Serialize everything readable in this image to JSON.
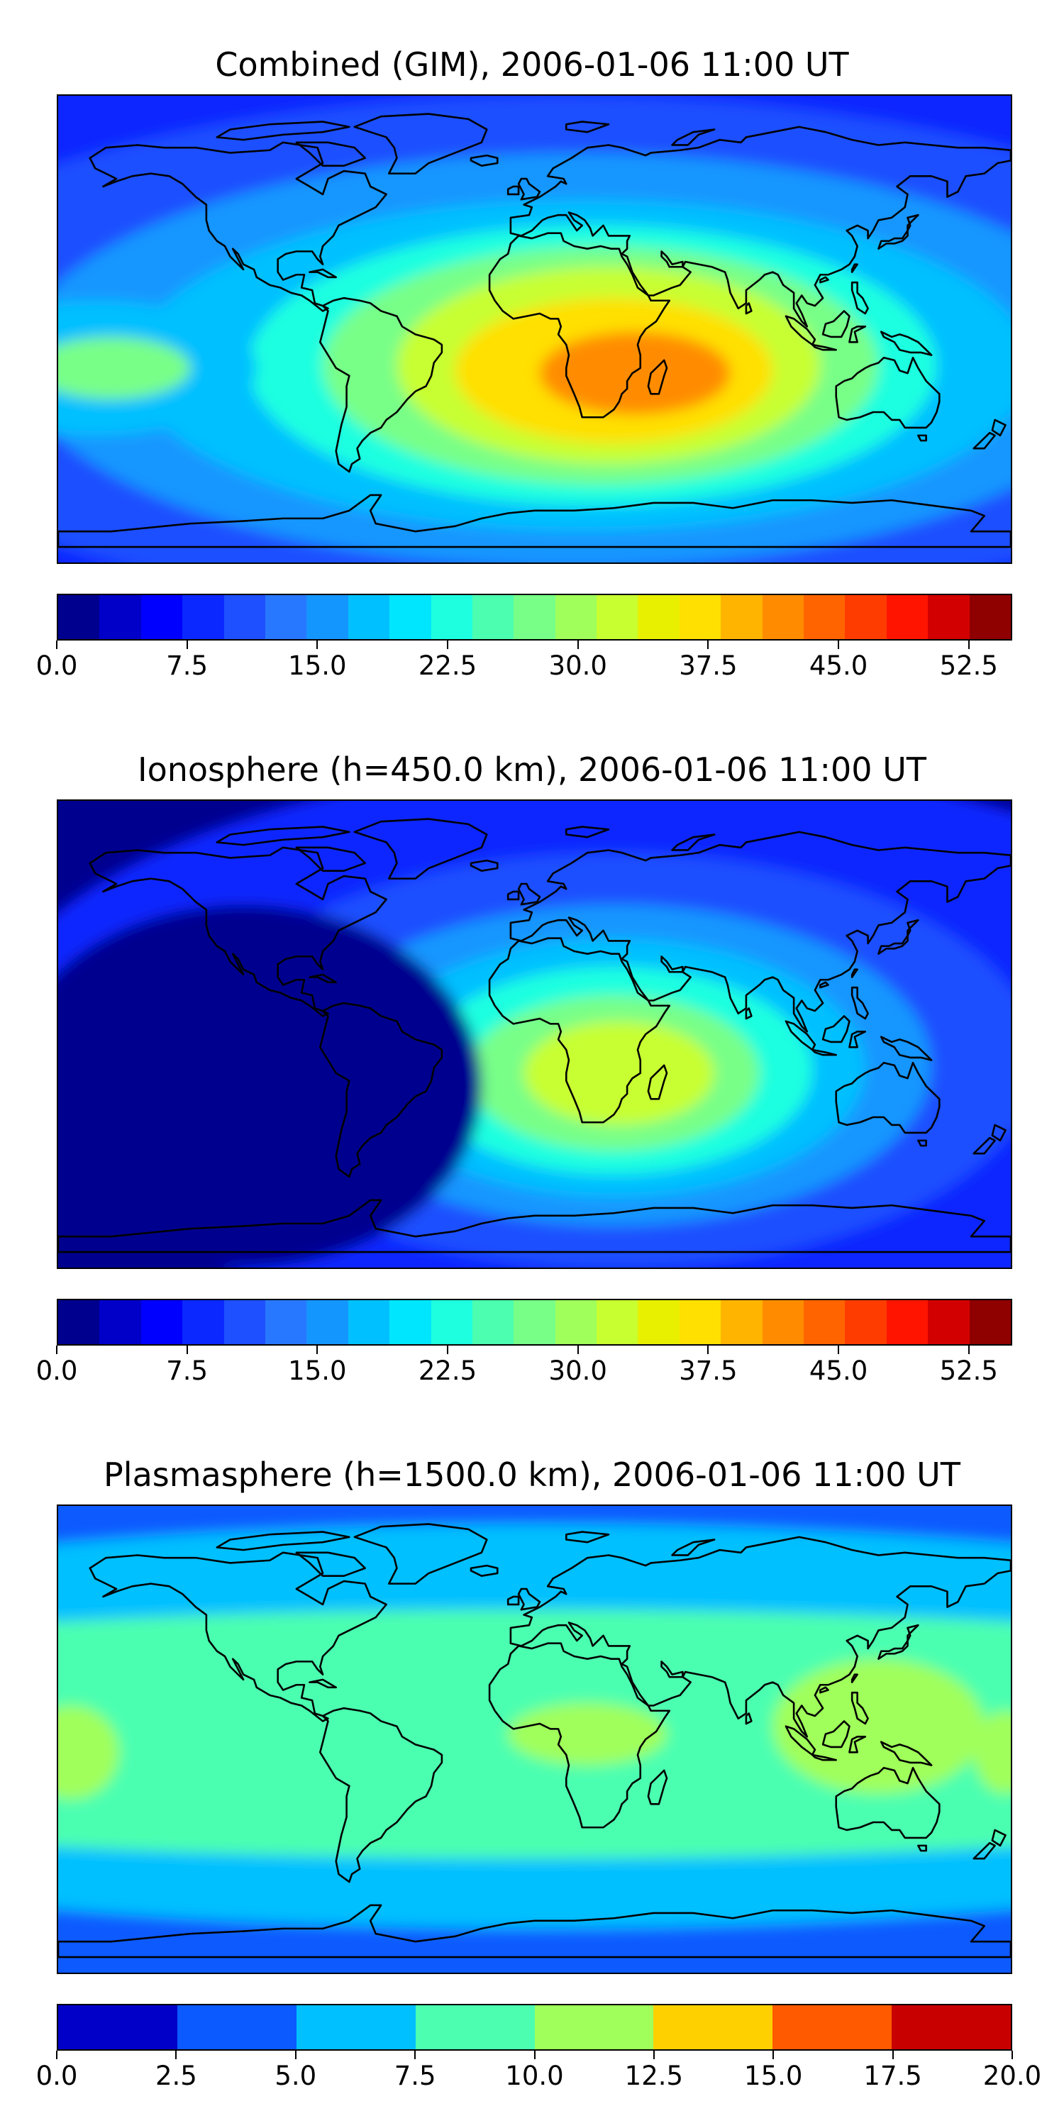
{
  "panels": [
    {
      "id": "combined",
      "title": "Combined (GIM), 2006-01-06 11:00 UT",
      "hotspot": [
        30,
        -18
      ],
      "cbar": {
        "vmin": 0,
        "vmax": 55,
        "colors": [
          "#00008f",
          "#0000c8",
          "#0000ff",
          "#0a28ff",
          "#1e50ff",
          "#2878ff",
          "#1496ff",
          "#00c0ff",
          "#00e6ff",
          "#1effe0",
          "#4cffb0",
          "#78ff88",
          "#a0ff5a",
          "#c8ff30",
          "#e8f000",
          "#ffe000",
          "#ffb400",
          "#ff8c00",
          "#ff6400",
          "#ff3c00",
          "#ff1400",
          "#d20000",
          "#8f0000"
        ],
        "ticks": [
          0,
          7.5,
          15,
          22.5,
          30,
          37.5,
          45,
          52.5
        ],
        "tick_labels": [
          "0.0",
          "7.5",
          "15.0",
          "22.5",
          "30.0",
          "37.5",
          "45.0",
          "52.5"
        ]
      }
    },
    {
      "id": "ionosphere",
      "title": "Ionosphere  (h=450.0 km), 2006-01-06 11:00 UT",
      "hotspot": [
        30,
        -15
      ],
      "cbar": {
        "vmin": 0,
        "vmax": 55,
        "colors": [
          "#00008f",
          "#0000c8",
          "#0000ff",
          "#0a28ff",
          "#1e50ff",
          "#2878ff",
          "#1496ff",
          "#00c0ff",
          "#00e6ff",
          "#1effe0",
          "#4cffb0",
          "#78ff88",
          "#a0ff5a",
          "#c8ff30",
          "#e8f000",
          "#ffe000",
          "#ffb400",
          "#ff8c00",
          "#ff6400",
          "#ff3c00",
          "#ff1400",
          "#d20000",
          "#8f0000"
        ],
        "ticks": [
          0,
          7.5,
          15,
          22.5,
          30,
          37.5,
          45,
          52.5
        ],
        "tick_labels": [
          "0.0",
          "7.5",
          "15.0",
          "22.5",
          "30.0",
          "37.5",
          "45.0",
          "52.5"
        ]
      }
    },
    {
      "id": "plasmasphere",
      "title": "Plasmasphere (h=1500.0 km), 2006-01-06 11:00 UT",
      "hotspot": [
        130,
        5
      ],
      "cbar": {
        "vmin": 0,
        "vmax": 20,
        "colors": [
          "#0000c8",
          "#0a5aff",
          "#00c0ff",
          "#4cffb0",
          "#a0ff5a",
          "#ffd000",
          "#ff5a00",
          "#c80000"
        ],
        "ticks": [
          0,
          2.5,
          5,
          7.5,
          10,
          12.5,
          15,
          17.5,
          20
        ],
        "tick_labels": [
          "0.0",
          "2.5",
          "5.0",
          "7.5",
          "10.0",
          "12.5",
          "15.0",
          "17.5",
          "20.0"
        ]
      }
    }
  ],
  "colors": {
    "ocean_background": "#0000c8",
    "coastline": "#000000"
  }
}
